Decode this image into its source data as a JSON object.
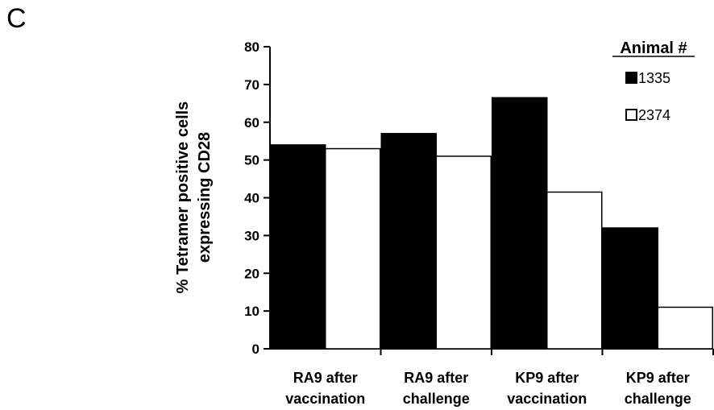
{
  "panel_label": "C",
  "chart_data": {
    "type": "bar",
    "categories": [
      [
        "RA9 after",
        "vaccination"
      ],
      [
        "RA9 after",
        "challenge"
      ],
      [
        "KP9 after",
        "vaccination"
      ],
      [
        "KP9 after",
        "challenge"
      ]
    ],
    "series": [
      {
        "name": "1335",
        "values": [
          54,
          57,
          66.5,
          32
        ],
        "color": "#000000"
      },
      {
        "name": "2374",
        "values": [
          53,
          51,
          41.5,
          11
        ],
        "color": "#ffffff"
      }
    ],
    "ylabel": [
      "% Tetramer positive cells",
      "expressing CD28"
    ],
    "ylim": [
      0,
      80
    ],
    "yticks": [
      0,
      10,
      20,
      30,
      40,
      50,
      60,
      70,
      80
    ],
    "legend_title": "Animal #",
    "legend_position": "top-right",
    "grid": false
  }
}
